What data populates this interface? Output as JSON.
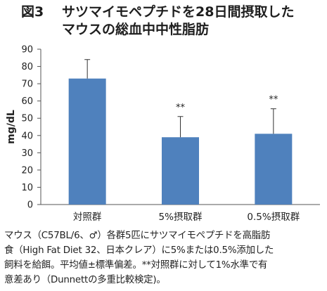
{
  "figure": {
    "label": "図3",
    "title_line1": "サツマイモペプチドを28日間摂取した",
    "title_line2": "マウスの総血中中性脂肪"
  },
  "chart_data": {
    "type": "bar",
    "categories": [
      "対照群",
      "5%摂取群",
      "0.5%摂取群"
    ],
    "values": [
      73,
      39,
      41
    ],
    "error_upper": [
      84,
      51,
      55.5
    ],
    "significance": [
      "",
      "**",
      "**"
    ],
    "ylabel": "mg/dL",
    "xlabel": "",
    "ylim": [
      0,
      90
    ],
    "yticks": [
      0,
      10,
      20,
      30,
      40,
      50,
      60,
      70,
      80,
      90
    ],
    "bar_color": "#4f81bd",
    "grid": false,
    "legend": "none"
  },
  "caption": {
    "lines": [
      "マウス（C57BL/6、♂）各群5匹にサツマイモペプチドを高脂肪",
      "食（High Fat Diet 32、日本クレア）に5%または0.5%添加した",
      "飼料を給餌。平均値±標準偏差。**対照群に対して1%水準で有",
      "意差あり（Dunnettの多重比較検定)。"
    ]
  }
}
